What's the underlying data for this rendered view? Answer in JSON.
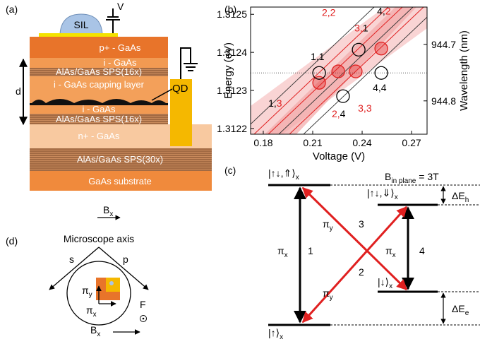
{
  "panel_a": {
    "label": "(a)",
    "sil": "SIL",
    "voltage": "V",
    "qd": "QD",
    "d": "d",
    "field": "B",
    "field_sub": "x",
    "layers": [
      "p+  - GaAs",
      "i - GaAs",
      "AlAs/GaAs SPS(16x)",
      "i - GaAs capping layer",
      "i - GaAs",
      "AlAs/GaAs SPS(16x)",
      "n+ - GaAs",
      "AlAs/GaAs SPS(30x)",
      "GaAs substrate"
    ]
  },
  "panel_b": {
    "label": "(b)",
    "x_label": "Voltage (V)",
    "y_label": "Energy (eV)",
    "y2_label": "Wavelength (nm)",
    "xlim": [
      0.1723,
      0.2794
    ],
    "xticks": [
      0.18,
      0.21,
      0.24,
      0.27
    ],
    "ylim": [
      1.312185,
      1.312519
    ],
    "yticks": [
      1.3122,
      1.3123,
      1.3124,
      1.3125
    ],
    "y2lim": [
      944.859,
      944.634
    ],
    "y2ticks": [
      944.7,
      944.8
    ],
    "reference_energy": 1.312346,
    "markers": [
      {
        "x": 0.2139,
        "y": 1.31232,
        "color": "#e02020"
      },
      {
        "x": 0.2255,
        "y": 1.31235,
        "color": "#e02020"
      },
      {
        "x": 0.2361,
        "y": 1.31235,
        "color": "#e02020"
      },
      {
        "x": 0.2516,
        "y": 1.31241,
        "color": "#e02020"
      },
      {
        "x": 0.2139,
        "y": 1.312346,
        "color": "#000000"
      },
      {
        "x": 0.2284,
        "y": 1.312285,
        "color": "#000000"
      },
      {
        "x": 0.2379,
        "y": 1.312407,
        "color": "#000000"
      },
      {
        "x": 0.2516,
        "y": 1.312346,
        "color": "#000000"
      }
    ],
    "labels": [
      {
        "parts": [
          {
            "text": "1,",
            "color": "#000000"
          },
          {
            "text": "1",
            "color": "#000000"
          }
        ]
      },
      {
        "parts": [
          {
            "text": "2,",
            "color": "#e02020"
          },
          {
            "text": "2",
            "color": "#e02020"
          }
        ]
      },
      {
        "parts": [
          {
            "text": "3,",
            "color": "#e02020"
          },
          {
            "text": "1",
            "color": "#000000"
          }
        ]
      },
      {
        "parts": [
          {
            "text": "4,",
            "color": "#000000"
          },
          {
            "text": "2",
            "color": "#e02020"
          }
        ]
      },
      {
        "parts": [
          {
            "text": "1,",
            "color": "#000000"
          },
          {
            "text": "3",
            "color": "#e02020"
          }
        ]
      },
      {
        "parts": [
          {
            "text": "2,",
            "color": "#e02020"
          },
          {
            "text": "4",
            "color": "#000000"
          }
        ]
      },
      {
        "parts": [
          {
            "text": "3,",
            "color": "#e02020"
          },
          {
            "text": "3",
            "color": "#e02020"
          }
        ]
      },
      {
        "parts": [
          {
            "text": "4,",
            "color": "#000000"
          },
          {
            "text": "4",
            "color": "#000000"
          }
        ]
      }
    ]
  },
  "panel_c": {
    "label": "(c)",
    "field": "B",
    "field_sub": "in plane",
    "field_value": " = 3T",
    "states": [
      {
        "ket": "|↑↓,⇑⟩",
        "sub": "x"
      },
      {
        "ket": "|↑↓,⇓⟩",
        "sub": "x"
      },
      {
        "ket": "|↓⟩",
        "sub": "x"
      },
      {
        "ket": "|↑⟩",
        "sub": "x"
      }
    ],
    "splittings": [
      {
        "symbol": "ΔE",
        "sub": "h"
      },
      {
        "symbol": "ΔE",
        "sub": "e"
      }
    ],
    "transitions": [
      {
        "pol": "π",
        "sub": "x",
        "number": 1
      },
      {
        "pol": "π",
        "sub": "y",
        "number": 2
      },
      {
        "pol": "π",
        "sub": "y",
        "number": 3
      },
      {
        "pol": "π",
        "sub": "x",
        "number": 4
      }
    ]
  },
  "panel_d": {
    "label": "(d)",
    "axis": "Microscope axis",
    "s": "s",
    "p": "p",
    "pi_y": "π",
    "pi_y_sub": "y",
    "pi_x": "π",
    "pi_x_sub": "x",
    "f": "F",
    "field": "B",
    "field_sub": "x"
  }
}
